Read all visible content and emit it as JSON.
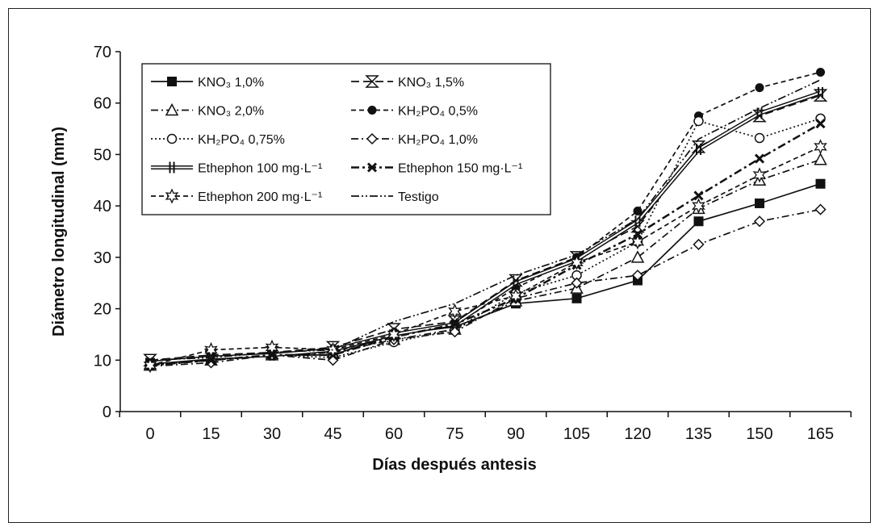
{
  "chart_data": {
    "type": "line",
    "xlabel": "Días después antesis",
    "ylabel": "Diámetro longitudinal (mm)",
    "x": [
      0,
      15,
      30,
      45,
      60,
      75,
      90,
      105,
      120,
      135,
      150,
      165
    ],
    "x_tick_labels": [
      "0",
      "15",
      "30",
      "45",
      "60",
      "75",
      "90",
      "105",
      "120",
      "135",
      "150",
      "165"
    ],
    "ylim": [
      0,
      70
    ],
    "y_ticks": [
      0,
      10,
      20,
      30,
      40,
      50,
      60,
      70
    ],
    "y_tick_labels": [
      "0",
      "10",
      "20",
      "30",
      "40",
      "50",
      "60",
      "70"
    ],
    "grid": false,
    "legend_position": "top-left",
    "series": [
      {
        "name": "KNO₃ 1,0%",
        "marker": "square-filled",
        "dash": "solid",
        "values": [
          9.5,
          10.5,
          11,
          11,
          15,
          16.5,
          21,
          22,
          25.5,
          37,
          40.5,
          44.3
        ]
      },
      {
        "name": "KNO₃ 1,5%",
        "marker": "hourglass",
        "dash": "longdash",
        "values": [
          10,
          11,
          11.5,
          12.5,
          16,
          17.5,
          25.5,
          30,
          36,
          51.5,
          57.5,
          61.5
        ]
      },
      {
        "name": "KNO₃ 2,0%",
        "marker": "triangle-open",
        "dash": "dashdot",
        "values": [
          9,
          10,
          11,
          11.5,
          14,
          16,
          21.5,
          24,
          30,
          39.5,
          45,
          49
        ]
      },
      {
        "name": "KH₂PO₄ 0,5%",
        "marker": "circle-filled",
        "dash": "dashed",
        "values": [
          9.5,
          10.5,
          11,
          11.5,
          15,
          17,
          24,
          30,
          39,
          57.5,
          63,
          66
        ]
      },
      {
        "name": "KH₂PO₄ 0,75%",
        "marker": "circle-open",
        "dash": "dotted",
        "values": [
          9,
          10,
          11,
          10.5,
          13.5,
          16,
          23,
          26.5,
          33,
          56.5,
          53.2,
          57
        ]
      },
      {
        "name": "KH₂PO₄ 1,0%",
        "marker": "diamond-open",
        "dash": "dashdot",
        "values": [
          8.8,
          9.5,
          11,
          10,
          14,
          15.5,
          22,
          25,
          26.5,
          32.5,
          37,
          39.3
        ]
      },
      {
        "name": "Ethephon 100 mg·L⁻¹",
        "marker": "double-bar",
        "dash": "double",
        "values": [
          9.5,
          10.5,
          11,
          12,
          15,
          17,
          25,
          29.5,
          37,
          51,
          58,
          62
        ]
      },
      {
        "name": "Ethephon 150 mg·L⁻¹",
        "marker": "x",
        "dash": "dashdot-bold",
        "values": [
          9,
          10,
          11,
          11,
          14.5,
          17,
          22,
          28.5,
          34.5,
          42,
          49.2,
          56
        ]
      },
      {
        "name": "Ethephon 200 mg·L⁻¹",
        "marker": "star-open",
        "dash": "dashed",
        "values": [
          9,
          12,
          12.5,
          12,
          15,
          19.5,
          22.5,
          29,
          33,
          40,
          46,
          51.5
        ]
      },
      {
        "name": "Testigo",
        "marker": "none",
        "dash": "dashdotdot",
        "values": [
          10,
          10.5,
          11.5,
          12,
          17.5,
          21,
          26.5,
          30.5,
          37.5,
          53,
          59,
          64.5
        ]
      }
    ]
  }
}
